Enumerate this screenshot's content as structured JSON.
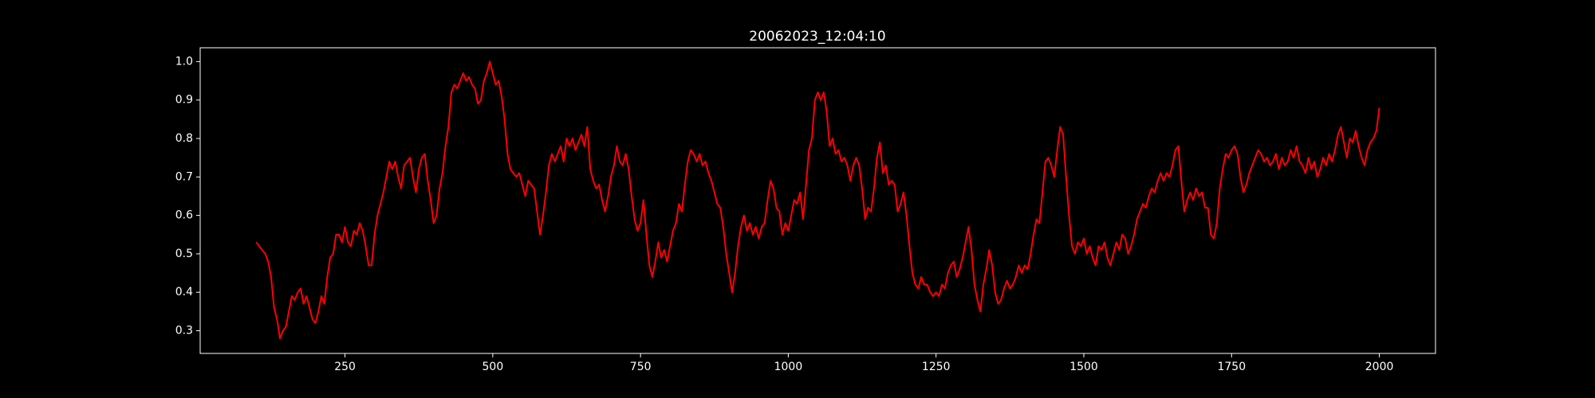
{
  "chart_data": {
    "type": "line",
    "title": "20062023_12:04:10",
    "color": "#ff0000",
    "x": [
      100,
      105,
      110,
      115,
      120,
      125,
      130,
      135,
      140,
      145,
      150,
      155,
      160,
      165,
      170,
      175,
      180,
      185,
      190,
      195,
      200,
      205,
      210,
      215,
      220,
      225,
      230,
      235,
      240,
      245,
      250,
      255,
      260,
      265,
      270,
      275,
      280,
      285,
      290,
      295,
      300,
      305,
      310,
      315,
      320,
      325,
      330,
      335,
      340,
      345,
      350,
      355,
      360,
      365,
      370,
      375,
      380,
      385,
      390,
      395,
      400,
      405,
      410,
      415,
      420,
      425,
      430,
      435,
      440,
      445,
      450,
      455,
      460,
      465,
      470,
      475,
      480,
      485,
      490,
      495,
      500,
      505,
      510,
      515,
      520,
      525,
      530,
      535,
      540,
      545,
      550,
      555,
      560,
      565,
      570,
      575,
      580,
      585,
      590,
      595,
      600,
      605,
      610,
      615,
      620,
      625,
      630,
      635,
      640,
      645,
      650,
      655,
      660,
      665,
      670,
      675,
      680,
      685,
      690,
      695,
      700,
      705,
      710,
      715,
      720,
      725,
      730,
      735,
      740,
      745,
      750,
      755,
      760,
      765,
      770,
      775,
      780,
      785,
      790,
      795,
      800,
      805,
      810,
      815,
      820,
      825,
      830,
      835,
      840,
      845,
      850,
      855,
      860,
      865,
      870,
      875,
      880,
      885,
      890,
      895,
      900,
      905,
      910,
      915,
      920,
      925,
      930,
      935,
      940,
      945,
      950,
      955,
      960,
      965,
      970,
      975,
      980,
      985,
      990,
      995,
      1000,
      1005,
      1010,
      1015,
      1020,
      1025,
      1030,
      1035,
      1040,
      1045,
      1050,
      1055,
      1060,
      1065,
      1070,
      1075,
      1080,
      1085,
      1090,
      1095,
      1100,
      1105,
      1110,
      1115,
      1120,
      1125,
      1130,
      1135,
      1140,
      1145,
      1150,
      1155,
      1160,
      1165,
      1170,
      1175,
      1180,
      1185,
      1190,
      1195,
      1200,
      1205,
      1210,
      1215,
      1220,
      1225,
      1230,
      1235,
      1240,
      1245,
      1250,
      1255,
      1260,
      1265,
      1270,
      1275,
      1280,
      1285,
      1290,
      1295,
      1300,
      1305,
      1310,
      1315,
      1320,
      1325,
      1330,
      1335,
      1340,
      1345,
      1350,
      1355,
      1360,
      1365,
      1370,
      1375,
      1380,
      1385,
      1390,
      1395,
      1400,
      1405,
      1410,
      1415,
      1420,
      1425,
      1430,
      1435,
      1440,
      1445,
      1450,
      1455,
      1460,
      1465,
      1470,
      1475,
      1480,
      1485,
      1490,
      1495,
      1500,
      1505,
      1510,
      1515,
      1520,
      1525,
      1530,
      1535,
      1540,
      1545,
      1550,
      1555,
      1560,
      1565,
      1570,
      1575,
      1580,
      1585,
      1590,
      1595,
      1600,
      1605,
      1610,
      1615,
      1620,
      1625,
      1630,
      1635,
      1640,
      1645,
      1650,
      1655,
      1660,
      1665,
      1670,
      1675,
      1680,
      1685,
      1690,
      1695,
      1700,
      1705,
      1710,
      1715,
      1720,
      1725,
      1730,
      1735,
      1740,
      1745,
      1750,
      1755,
      1760,
      1765,
      1770,
      1775,
      1780,
      1785,
      1790,
      1795,
      1800,
      1805,
      1810,
      1815,
      1820,
      1825,
      1830,
      1835,
      1840,
      1845,
      1850,
      1855,
      1860,
      1865,
      1870,
      1875,
      1880,
      1885,
      1890,
      1895,
      1900,
      1905,
      1910,
      1915,
      1920,
      1925,
      1930,
      1935,
      1940,
      1945,
      1950,
      1955,
      1960,
      1965,
      1970,
      1975,
      1980,
      1985,
      1990,
      1995,
      2000
    ],
    "values": [
      0.53,
      0.52,
      0.51,
      0.5,
      0.48,
      0.44,
      0.36,
      0.33,
      0.28,
      0.3,
      0.31,
      0.35,
      0.39,
      0.38,
      0.4,
      0.41,
      0.37,
      0.39,
      0.36,
      0.33,
      0.32,
      0.35,
      0.39,
      0.37,
      0.44,
      0.49,
      0.5,
      0.55,
      0.55,
      0.53,
      0.57,
      0.53,
      0.52,
      0.56,
      0.55,
      0.58,
      0.56,
      0.52,
      0.47,
      0.47,
      0.55,
      0.6,
      0.63,
      0.66,
      0.7,
      0.74,
      0.72,
      0.74,
      0.7,
      0.67,
      0.73,
      0.74,
      0.75,
      0.7,
      0.66,
      0.72,
      0.75,
      0.76,
      0.69,
      0.64,
      0.58,
      0.6,
      0.67,
      0.71,
      0.78,
      0.83,
      0.92,
      0.94,
      0.93,
      0.95,
      0.97,
      0.95,
      0.96,
      0.94,
      0.93,
      0.89,
      0.9,
      0.95,
      0.97,
      1.0,
      0.97,
      0.94,
      0.95,
      0.91,
      0.85,
      0.76,
      0.72,
      0.71,
      0.7,
      0.71,
      0.68,
      0.65,
      0.69,
      0.68,
      0.67,
      0.61,
      0.55,
      0.6,
      0.66,
      0.73,
      0.76,
      0.74,
      0.76,
      0.78,
      0.74,
      0.8,
      0.78,
      0.8,
      0.77,
      0.79,
      0.81,
      0.78,
      0.83,
      0.72,
      0.69,
      0.67,
      0.68,
      0.64,
      0.61,
      0.65,
      0.7,
      0.73,
      0.78,
      0.74,
      0.73,
      0.76,
      0.72,
      0.65,
      0.59,
      0.56,
      0.58,
      0.64,
      0.55,
      0.47,
      0.44,
      0.48,
      0.53,
      0.49,
      0.51,
      0.48,
      0.52,
      0.56,
      0.58,
      0.63,
      0.61,
      0.68,
      0.74,
      0.77,
      0.76,
      0.74,
      0.76,
      0.73,
      0.74,
      0.71,
      0.69,
      0.66,
      0.63,
      0.62,
      0.57,
      0.5,
      0.45,
      0.4,
      0.45,
      0.52,
      0.57,
      0.6,
      0.56,
      0.58,
      0.55,
      0.57,
      0.54,
      0.57,
      0.58,
      0.64,
      0.69,
      0.67,
      0.62,
      0.61,
      0.55,
      0.58,
      0.56,
      0.6,
      0.64,
      0.63,
      0.66,
      0.59,
      0.68,
      0.77,
      0.8,
      0.9,
      0.92,
      0.9,
      0.92,
      0.87,
      0.78,
      0.8,
      0.76,
      0.77,
      0.74,
      0.75,
      0.73,
      0.69,
      0.73,
      0.75,
      0.73,
      0.67,
      0.59,
      0.62,
      0.61,
      0.67,
      0.75,
      0.79,
      0.71,
      0.73,
      0.68,
      0.69,
      0.68,
      0.61,
      0.63,
      0.66,
      0.6,
      0.52,
      0.45,
      0.42,
      0.41,
      0.44,
      0.42,
      0.42,
      0.4,
      0.39,
      0.4,
      0.39,
      0.42,
      0.41,
      0.45,
      0.47,
      0.48,
      0.44,
      0.46,
      0.49,
      0.53,
      0.57,
      0.51,
      0.42,
      0.38,
      0.35,
      0.42,
      0.46,
      0.51,
      0.47,
      0.4,
      0.37,
      0.38,
      0.41,
      0.43,
      0.41,
      0.42,
      0.44,
      0.47,
      0.45,
      0.47,
      0.46,
      0.5,
      0.55,
      0.59,
      0.58,
      0.66,
      0.74,
      0.75,
      0.73,
      0.7,
      0.77,
      0.83,
      0.81,
      0.7,
      0.6,
      0.52,
      0.5,
      0.53,
      0.52,
      0.54,
      0.5,
      0.52,
      0.49,
      0.47,
      0.52,
      0.51,
      0.53,
      0.49,
      0.47,
      0.5,
      0.53,
      0.51,
      0.55,
      0.54,
      0.5,
      0.52,
      0.55,
      0.59,
      0.61,
      0.63,
      0.62,
      0.65,
      0.67,
      0.66,
      0.69,
      0.71,
      0.69,
      0.71,
      0.7,
      0.73,
      0.77,
      0.78,
      0.69,
      0.61,
      0.64,
      0.66,
      0.64,
      0.67,
      0.65,
      0.66,
      0.62,
      0.62,
      0.55,
      0.54,
      0.58,
      0.67,
      0.72,
      0.76,
      0.75,
      0.77,
      0.78,
      0.76,
      0.7,
      0.66,
      0.68,
      0.71,
      0.73,
      0.75,
      0.77,
      0.76,
      0.74,
      0.75,
      0.73,
      0.74,
      0.76,
      0.72,
      0.75,
      0.73,
      0.74,
      0.77,
      0.75,
      0.78,
      0.74,
      0.73,
      0.71,
      0.75,
      0.72,
      0.74,
      0.7,
      0.72,
      0.75,
      0.73,
      0.76,
      0.74,
      0.77,
      0.81,
      0.83,
      0.79,
      0.75,
      0.8,
      0.79,
      0.82,
      0.78,
      0.75,
      0.73,
      0.77,
      0.79,
      0.8,
      0.82,
      0.88
    ],
    "xlim": [
      5,
      2095
    ],
    "xticks": [
      250,
      500,
      750,
      1000,
      1250,
      1500,
      1750,
      2000
    ],
    "ylim": [
      0.241,
      1.036
    ],
    "yticks": [
      0.3,
      0.4,
      0.5,
      0.6,
      0.7,
      0.8,
      0.9,
      {
        "value": 1,
        "label": "1.0"
      }
    ]
  }
}
